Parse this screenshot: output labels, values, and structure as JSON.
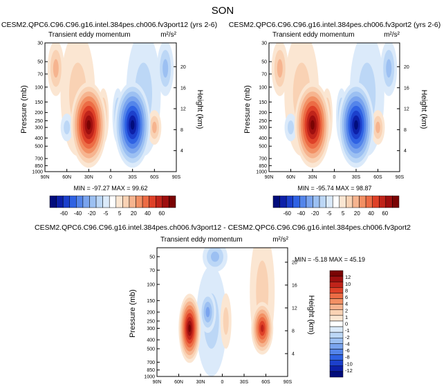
{
  "title": "SON",
  "colors": {
    "pos": [
      "#fbe6d2",
      "#f9d2b4",
      "#f6b48f",
      "#f29064",
      "#ec6c45",
      "#de4128",
      "#c0241a",
      "#9e0f0f",
      "#7a0404"
    ],
    "neg": [
      "#dbeafa",
      "#bcd7f6",
      "#9cc0f2",
      "#7aa4ee",
      "#5485ea",
      "#2f62e3",
      "#1c40cc",
      "#0d20a8",
      "#020d7c"
    ],
    "bg": "#ffffff"
  },
  "chart_data": [
    {
      "type": "contour",
      "title": "CESM2.QPC6.C96.C96.g16.intel.384pes.ch006.fv3port12 (yrs 2-6)",
      "left_label": "Transient eddy momentum",
      "right_label": "m²/s²",
      "ylabel": "Pressure (mb)",
      "ylabel_right": "Height (km)",
      "x_ticks": [
        "90N",
        "60N",
        "30N",
        "0",
        "30S",
        "60S",
        "90S"
      ],
      "y_ticks": [
        "30",
        "50",
        "70",
        "100",
        "150",
        "200",
        "250",
        "300",
        "400",
        "500",
        "700",
        "850",
        "1000"
      ],
      "y_right_ticks": [
        "20",
        "16",
        "12",
        "8",
        "4"
      ],
      "min": -97.27,
      "max": 99.62,
      "stats_text": "MIN = -97.27   MAX = 99.62",
      "features": [
        {
          "lat": 30,
          "p": 280,
          "value": 99.62
        },
        {
          "lat": -30,
          "p": 280,
          "value": -97.27
        }
      ]
    },
    {
      "type": "contour",
      "title": "CESM2.QPC6.C96.C96.g16.intel.384pes.ch006.fv3port2 (yrs 2-6)",
      "left_label": "Transient eddy momentum",
      "right_label": "m²/s²",
      "ylabel": "Pressure (mb)",
      "ylabel_right": "Height (km)",
      "x_ticks": [
        "90N",
        "60N",
        "30N",
        "0",
        "30S",
        "60S",
        "90S"
      ],
      "y_ticks": [
        "30",
        "50",
        "70",
        "100",
        "150",
        "200",
        "250",
        "300",
        "400",
        "500",
        "700",
        "850",
        "1000"
      ],
      "y_right_ticks": [
        "20",
        "16",
        "12",
        "8",
        "4"
      ],
      "min": -95.74,
      "max": 98.87,
      "stats_text": "MIN = -95.74   MAX = 98.87",
      "features": [
        {
          "lat": 30,
          "p": 280,
          "value": 98.87
        },
        {
          "lat": -30,
          "p": 280,
          "value": -95.74
        }
      ]
    },
    {
      "type": "contour",
      "title": "CESM2.QPC6.C96.C96.g16.intel.384pes.ch006.fv3port12 - CESM2.QPC6.C96.C96.g16.intel.384pes.ch006.fv3port2",
      "left_label": "Transient eddy momentum",
      "right_label": "m²/s²",
      "ylabel": "Pressure (mb)",
      "ylabel_right": "Height (km)",
      "x_ticks": [
        "90N",
        "60N",
        "30N",
        "0",
        "30S",
        "60S",
        "90S"
      ],
      "y_ticks": [
        "50",
        "70",
        "100",
        "150",
        "200",
        "250",
        "300",
        "400",
        "500",
        "700",
        "850",
        "1000"
      ],
      "y_right_ticks": [
        "20",
        "16",
        "12",
        "8",
        "4"
      ],
      "min": -5.18,
      "max": 45.19,
      "stats_text": "MIN = -5.18   MAX = 45.19",
      "features": [
        {
          "lat": 45,
          "p": 300,
          "value": 12
        },
        {
          "lat": -55,
          "p": 300,
          "value": 10
        }
      ]
    }
  ],
  "colorbar_top": {
    "labels": [
      "-60",
      "-40",
      "-20",
      "-5",
      "5",
      "20",
      "40",
      "60"
    ]
  },
  "colorbar_diff": {
    "labels": [
      "12",
      "10",
      "8",
      "6",
      "4",
      "2",
      "1",
      "0",
      "-1",
      "-2",
      "-4",
      "-6",
      "-8",
      "-10",
      "-12"
    ]
  }
}
